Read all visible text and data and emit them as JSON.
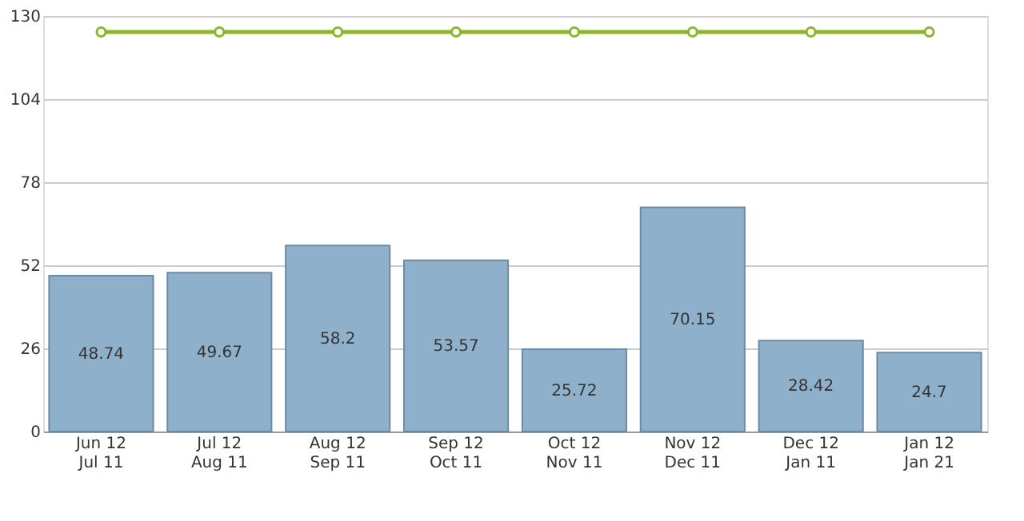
{
  "chart_data": {
    "type": "bar",
    "categories": [
      "Jun 12\nJul 11",
      "Jul 12\nAug 11",
      "Aug 12\nSep 11",
      "Sep 12\nOct 11",
      "Oct 12\nNov 11",
      "Nov 12\nDec 11",
      "Dec 12\nJan 11",
      "Jan 12\nJan 21"
    ],
    "series": [
      {
        "color": "#8fb0ca",
        "values": [
          48.74,
          49.67,
          58.2,
          53.57,
          25.72,
          70.15,
          28.42,
          24.7
        ],
        "value_labels": [
          "48.74",
          "49.67",
          "58.2",
          "53.57",
          "25.72",
          "70.15",
          "28.42",
          "24.7"
        ]
      },
      {
        "type": "line",
        "color": "#8db52a",
        "marker": "circle",
        "values": [
          125,
          125,
          125,
          125,
          125,
          125,
          125,
          125
        ]
      }
    ],
    "ylim": [
      0,
      130
    ],
    "yticks": [
      0,
      26,
      52,
      78,
      104,
      130
    ],
    "grid": "y"
  }
}
